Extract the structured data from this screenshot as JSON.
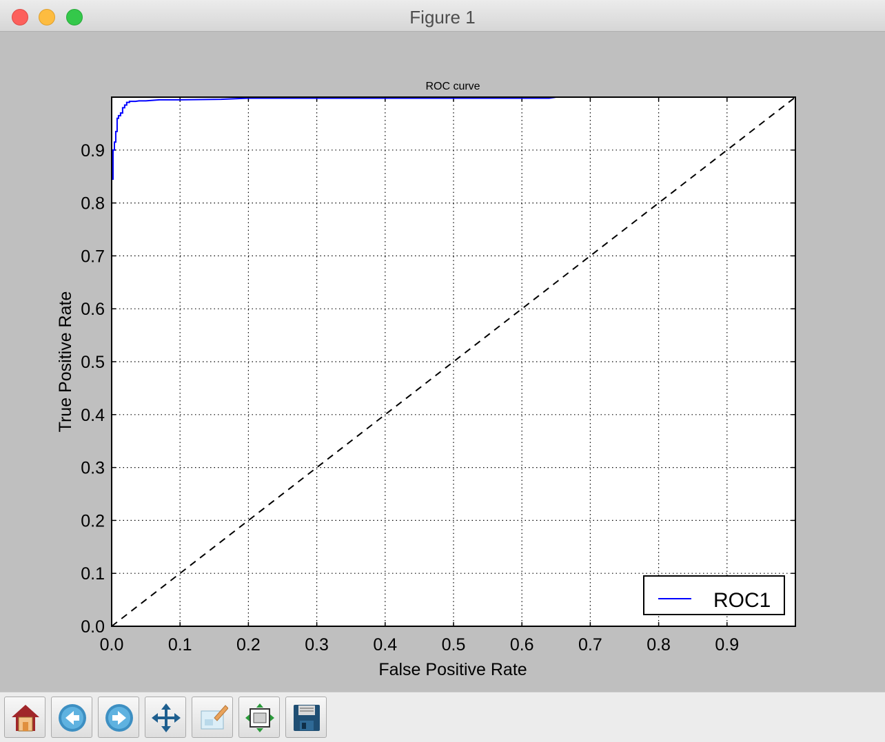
{
  "window": {
    "title": "Figure 1"
  },
  "toolbar": {
    "buttons": [
      {
        "name": "home-icon"
      },
      {
        "name": "back-icon"
      },
      {
        "name": "forward-icon"
      },
      {
        "name": "pan-icon"
      },
      {
        "name": "zoom-icon"
      },
      {
        "name": "subplots-icon"
      },
      {
        "name": "save-icon"
      }
    ]
  },
  "chart_data": {
    "type": "line",
    "title": "ROC curve",
    "xlabel": "False Positive Rate",
    "ylabel": "True Positive Rate",
    "xlim": [
      0,
      1
    ],
    "ylim": [
      0,
      1
    ],
    "xticks": [
      "0.0",
      "0.1",
      "0.2",
      "0.3",
      "0.4",
      "0.5",
      "0.6",
      "0.7",
      "0.8",
      "0.9"
    ],
    "yticks": [
      "0.0",
      "0.1",
      "0.2",
      "0.3",
      "0.4",
      "0.5",
      "0.6",
      "0.7",
      "0.8",
      "0.9"
    ],
    "grid": true,
    "legend_position": "lower-right",
    "colors": {
      "roc": "#0000ff",
      "reference": "#000000"
    },
    "series": [
      {
        "name": "ROC1",
        "style": "solid",
        "x": [
          0.0,
          0.0,
          0.002,
          0.002,
          0.004,
          0.004,
          0.006,
          0.006,
          0.008,
          0.008,
          0.01,
          0.01,
          0.013,
          0.013,
          0.016,
          0.016,
          0.019,
          0.019,
          0.022,
          0.022,
          0.026,
          0.026,
          0.035,
          0.04,
          0.05,
          0.06,
          0.07,
          0.1,
          0.16,
          0.2,
          0.3,
          0.5,
          0.64,
          0.65,
          1.0
        ],
        "y": [
          0.0,
          0.845,
          0.845,
          0.9,
          0.9,
          0.915,
          0.915,
          0.935,
          0.935,
          0.96,
          0.96,
          0.965,
          0.965,
          0.97,
          0.97,
          0.98,
          0.98,
          0.985,
          0.985,
          0.99,
          0.99,
          0.992,
          0.992,
          0.993,
          0.993,
          0.994,
          0.995,
          0.995,
          0.996,
          0.998,
          0.998,
          0.998,
          0.998,
          1.0,
          1.0
        ]
      },
      {
        "style": "dashed",
        "x": [
          0,
          1
        ],
        "y": [
          0,
          1
        ]
      }
    ]
  }
}
